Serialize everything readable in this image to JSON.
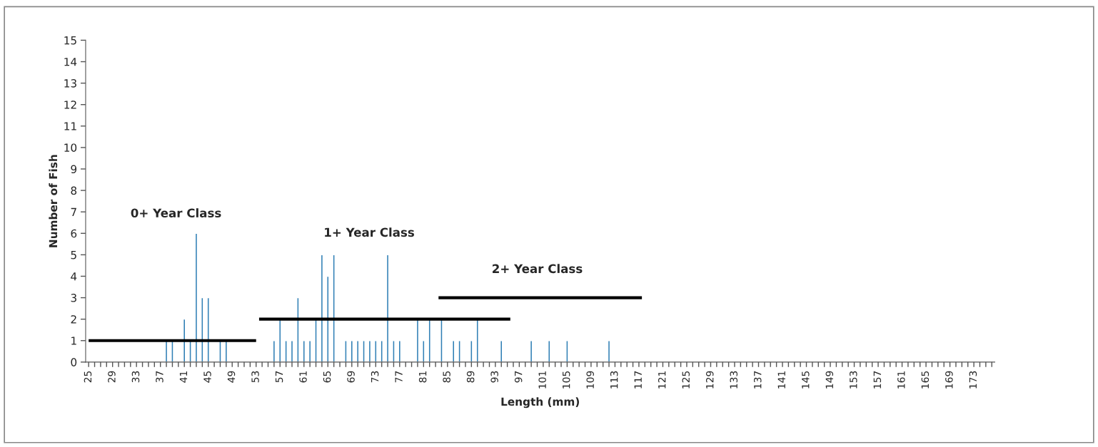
{
  "chart_data": {
    "type": "bar",
    "xlabel": "Length (mm)",
    "ylabel": "Number of Fish",
    "series": [
      {
        "color": "#2f7fb5",
        "x": [
          38,
          39,
          41,
          42,
          43,
          44,
          45,
          47,
          48,
          56,
          57,
          58,
          59,
          60,
          61,
          62,
          63,
          64,
          65,
          66,
          68,
          69,
          70,
          71,
          72,
          73,
          74,
          75,
          76,
          77,
          80,
          81,
          82,
          84,
          86,
          87,
          89,
          90,
          94,
          99,
          102,
          105,
          112
        ],
        "values": [
          1,
          1,
          2,
          1,
          6,
          3,
          3,
          1,
          1,
          1,
          2,
          1,
          1,
          3,
          1,
          1,
          2,
          5,
          4,
          5,
          1,
          1,
          1,
          1,
          1,
          1,
          1,
          5,
          1,
          1,
          2,
          1,
          2,
          2,
          1,
          1,
          1,
          2,
          1,
          1,
          1,
          1,
          1
        ]
      },
      {
        "type": "line",
        "color": "#000000",
        "x": [
          25,
          53
        ],
        "values": [
          1,
          1
        ]
      },
      {
        "type": "line",
        "color": "#000000",
        "x": [
          53.5,
          95.5
        ],
        "values": [
          2,
          2
        ]
      },
      {
        "type": "line",
        "color": "#000000",
        "x": [
          83.5,
          117.5
        ],
        "values": [
          3,
          3
        ]
      }
    ],
    "annotations": [
      "0+ Year Class",
      "1+ Year Class",
      "2+ Year Class"
    ],
    "xlim": [
      24.5,
      176.5
    ],
    "xticks": [
      25,
      {
        "value": 26,
        "label": null
      },
      {
        "value": 27,
        "label": null
      },
      {
        "value": 28,
        "label": null
      },
      29,
      {
        "value": 30,
        "label": null
      },
      {
        "value": 31,
        "label": null
      },
      {
        "value": 32,
        "label": null
      },
      33,
      {
        "value": 34,
        "label": null
      },
      {
        "value": 35,
        "label": null
      },
      {
        "value": 36,
        "label": null
      },
      37,
      {
        "value": 38,
        "label": null
      },
      {
        "value": 39,
        "label": null
      },
      {
        "value": 40,
        "label": null
      },
      41,
      {
        "value": 42,
        "label": null
      },
      {
        "value": 43,
        "label": null
      },
      {
        "value": 44,
        "label": null
      },
      45,
      {
        "value": 46,
        "label": null
      },
      {
        "value": 47,
        "label": null
      },
      {
        "value": 48,
        "label": null
      },
      49,
      {
        "value": 50,
        "label": null
      },
      {
        "value": 51,
        "label": null
      },
      {
        "value": 52,
        "label": null
      },
      53,
      {
        "value": 54,
        "label": null
      },
      {
        "value": 55,
        "label": null
      },
      {
        "value": 56,
        "label": null
      },
      57,
      {
        "value": 58,
        "label": null
      },
      {
        "value": 59,
        "label": null
      },
      {
        "value": 60,
        "label": null
      },
      61,
      {
        "value": 62,
        "label": null
      },
      {
        "value": 63,
        "label": null
      },
      {
        "value": 64,
        "label": null
      },
      65,
      {
        "value": 66,
        "label": null
      },
      {
        "value": 67,
        "label": null
      },
      {
        "value": 68,
        "label": null
      },
      69,
      {
        "value": 70,
        "label": null
      },
      {
        "value": 71,
        "label": null
      },
      {
        "value": 72,
        "label": null
      },
      73,
      {
        "value": 74,
        "label": null
      },
      {
        "value": 75,
        "label": null
      },
      {
        "value": 76,
        "label": null
      },
      77,
      {
        "value": 78,
        "label": null
      },
      {
        "value": 79,
        "label": null
      },
      {
        "value": 80,
        "label": null
      },
      81,
      {
        "value": 82,
        "label": null
      },
      {
        "value": 83,
        "label": null
      },
      {
        "value": 84,
        "label": null
      },
      85,
      {
        "value": 86,
        "label": null
      },
      {
        "value": 87,
        "label": null
      },
      {
        "value": 88,
        "label": null
      },
      89,
      {
        "value": 90,
        "label": null
      },
      {
        "value": 91,
        "label": null
      },
      {
        "value": 92,
        "label": null
      },
      93,
      {
        "value": 94,
        "label": null
      },
      {
        "value": 95,
        "label": null
      },
      {
        "value": 96,
        "label": null
      },
      97,
      {
        "value": 98,
        "label": null
      },
      {
        "value": 99,
        "label": null
      },
      {
        "value": 100,
        "label": null
      },
      101,
      {
        "value": 102,
        "label": null
      },
      {
        "value": 103,
        "label": null
      },
      {
        "value": 104,
        "label": null
      },
      105,
      {
        "value": 106,
        "label": null
      },
      {
        "value": 107,
        "label": null
      },
      {
        "value": 108,
        "label": null
      },
      109,
      {
        "value": 110,
        "label": null
      },
      {
        "value": 111,
        "label": null
      },
      {
        "value": 112,
        "label": null
      },
      113,
      {
        "value": 114,
        "label": null
      },
      {
        "value": 115,
        "label": null
      },
      {
        "value": 116,
        "label": null
      },
      117,
      {
        "value": 118,
        "label": null
      },
      {
        "value": 119,
        "label": null
      },
      {
        "value": 120,
        "label": null
      },
      121,
      {
        "value": 122,
        "label": null
      },
      {
        "value": 123,
        "label": null
      },
      {
        "value": 124,
        "label": null
      },
      125,
      {
        "value": 126,
        "label": null
      },
      {
        "value": 127,
        "label": null
      },
      {
        "value": 128,
        "label": null
      },
      129,
      {
        "value": 130,
        "label": null
      },
      {
        "value": 131,
        "label": null
      },
      {
        "value": 132,
        "label": null
      },
      133,
      {
        "value": 134,
        "label": null
      },
      {
        "value": 135,
        "label": null
      },
      {
        "value": 136,
        "label": null
      },
      137,
      {
        "value": 138,
        "label": null
      },
      {
        "value": 139,
        "label": null
      },
      {
        "value": 140,
        "label": null
      },
      141,
      {
        "value": 142,
        "label": null
      },
      {
        "value": 143,
        "label": null
      },
      {
        "value": 144,
        "label": null
      },
      145,
      {
        "value": 146,
        "label": null
      },
      {
        "value": 147,
        "label": null
      },
      {
        "value": 148,
        "label": null
      },
      149,
      {
        "value": 150,
        "label": null
      },
      {
        "value": 151,
        "label": null
      },
      {
        "value": 152,
        "label": null
      },
      153,
      {
        "value": 154,
        "label": null
      },
      {
        "value": 155,
        "label": null
      },
      {
        "value": 156,
        "label": null
      },
      157,
      {
        "value": 158,
        "label": null
      },
      {
        "value": 159,
        "label": null
      },
      {
        "value": 160,
        "label": null
      },
      161,
      {
        "value": 162,
        "label": null
      },
      {
        "value": 163,
        "label": null
      },
      {
        "value": 164,
        "label": null
      },
      165,
      {
        "value": 166,
        "label": null
      },
      {
        "value": 167,
        "label": null
      },
      {
        "value": 168,
        "label": null
      },
      169,
      {
        "value": 170,
        "label": null
      },
      {
        "value": 171,
        "label": null
      },
      {
        "value": 172,
        "label": null
      },
      173,
      {
        "value": 174,
        "label": null
      },
      {
        "value": 175,
        "label": null
      },
      {
        "value": 176,
        "label": null
      }
    ],
    "ylim": [
      0,
      15
    ],
    "yticks": [
      0,
      1,
      2,
      3,
      4,
      5,
      6,
      7,
      8,
      9,
      10,
      11,
      12,
      13,
      14,
      15
    ],
    "grid": false,
    "legend": false
  }
}
